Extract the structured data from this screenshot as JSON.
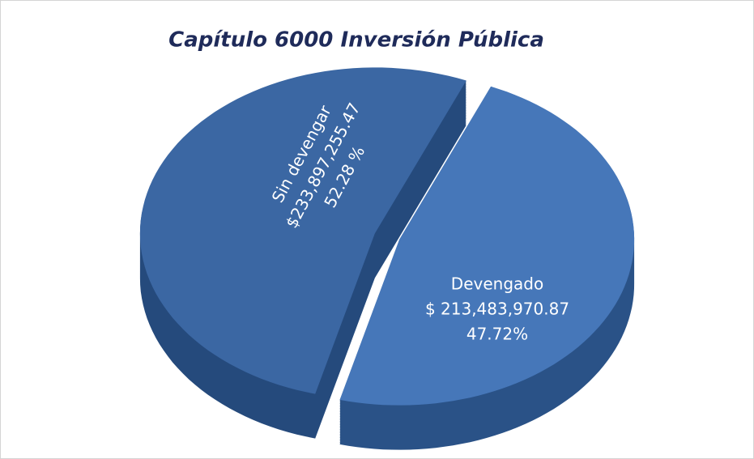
{
  "chart_data": {
    "type": "pie",
    "title": "Capítulo 6000 Inversión Pública",
    "categories": [
      "Sin devengar",
      "Devengado"
    ],
    "values": [
      52.28,
      47.72
    ],
    "value_labels": [
      "52.28 %",
      "47.72%"
    ],
    "amounts": [
      233897255.47,
      213483970.87
    ],
    "amount_labels": [
      "$233,897,255.47",
      "$ 213,483,970.87"
    ],
    "colors": [
      "#3b67a3",
      "#4677b9"
    ],
    "side_colors": [
      "#254a7c",
      "#2a5287"
    ]
  }
}
